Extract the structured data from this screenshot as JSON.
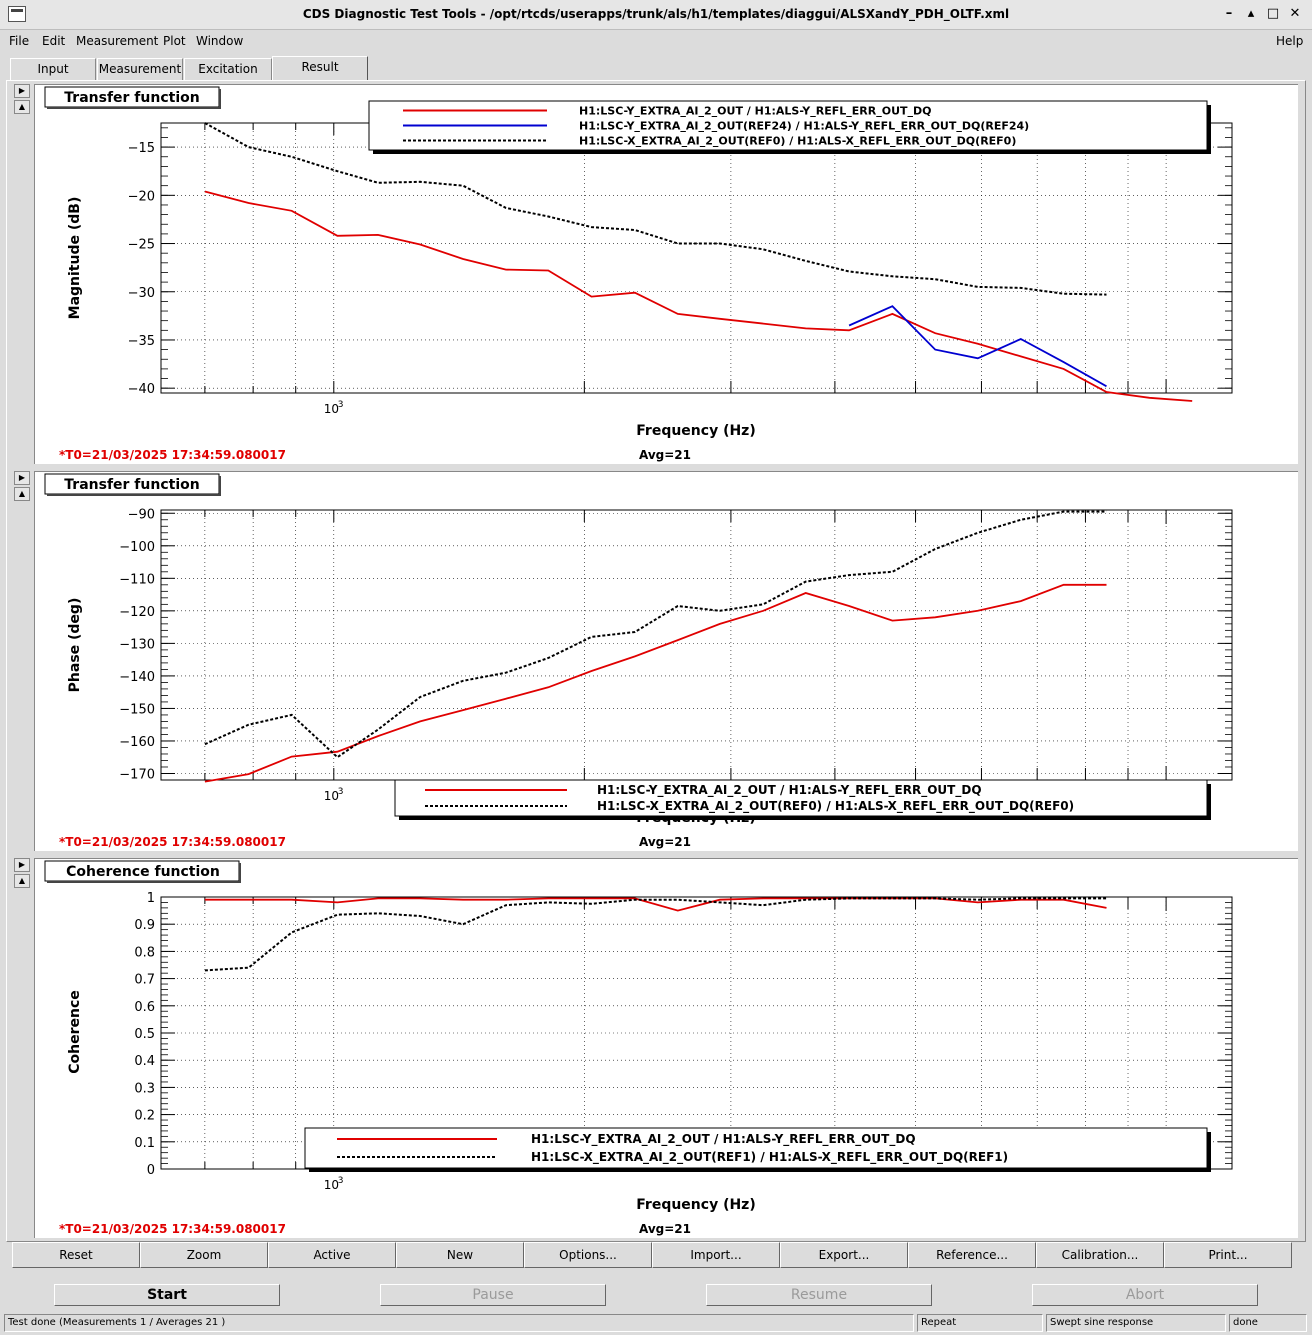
{
  "window": {
    "title": "CDS Diagnostic Test Tools - /opt/rtcds/userapps/trunk/als/h1/templates/diaggui/ALSXandY_PDH_OLTF.xml",
    "controls": [
      "–",
      "▴",
      "□",
      "✕"
    ]
  },
  "menu": {
    "file": "File",
    "edit": "Edit",
    "measurement": "Measurement",
    "plot": "Plot",
    "window": "Window",
    "help": "Help"
  },
  "tabs": [
    "Input",
    "Measurement",
    "Excitation",
    "Result"
  ],
  "active_tab": "Result",
  "colors": {
    "red": "#e00000",
    "blue": "#0000d0",
    "black": "#000000"
  },
  "panels": [
    {
      "title": "Transfer function",
      "xlabel": "Frequency (Hz)",
      "ylabel": "Magnitude (dB)",
      "t0": "*T0=21/03/2025 17:34:59.080017",
      "avg": "Avg=21",
      "legend": [
        "H1:LSC-Y_EXTRA_AI_2_OUT / H1:ALS-Y_REFL_ERR_OUT_DQ",
        "H1:LSC-Y_EXTRA_AI_2_OUT(REF24) / H1:ALS-Y_REFL_ERR_OUT_DQ(REF24)",
        "H1:LSC-X_EXTRA_AI_2_OUT(REF0) / H1:ALS-X_REFL_ERR_OUT_DQ(REF0)"
      ]
    },
    {
      "title": "Transfer function",
      "xlabel": "Frequency (Hz)",
      "ylabel": "Phase (deg)",
      "t0": "*T0=21/03/2025 17:34:59.080017",
      "avg": "Avg=21",
      "legend": [
        "H1:LSC-Y_EXTRA_AI_2_OUT / H1:ALS-Y_REFL_ERR_OUT_DQ",
        "H1:LSC-X_EXTRA_AI_2_OUT(REF0) / H1:ALS-X_REFL_ERR_OUT_DQ(REF0)"
      ]
    },
    {
      "title": "Coherence function",
      "xlabel": "Frequency (Hz)",
      "ylabel": "Coherence",
      "t0": "*T0=21/03/2025 17:34:59.080017",
      "avg": "Avg=21",
      "legend": [
        "H1:LSC-Y_EXTRA_AI_2_OUT / H1:ALS-Y_REFL_ERR_OUT_DQ",
        "H1:LSC-X_EXTRA_AI_2_OUT(REF1) / H1:ALS-X_REFL_ERR_OUT_DQ(REF1)"
      ]
    }
  ],
  "chart_data": [
    {
      "type": "line",
      "title": "Transfer function",
      "xlabel": "Frequency (Hz)",
      "ylabel": "Magnitude (dB)",
      "xscale": "log",
      "xlim": [
        620,
        12000
      ],
      "ylim": [
        -40.5,
        -12.5
      ],
      "xticklabels": [
        "10^3"
      ],
      "yticks": [
        -15,
        -20,
        -25,
        -30,
        -35,
        -40
      ],
      "grid": true,
      "legend_position": "top",
      "series": [
        {
          "name": "H1:LSC-Y_EXTRA_AI_2_OUT / H1:ALS-Y_REFL_ERR_OUT_DQ",
          "color": "#e00000",
          "style": "solid",
          "x": [
            700,
            790,
            890,
            1010,
            1130,
            1270,
            1430,
            1610,
            1810,
            2040,
            2300,
            2590,
            2910,
            3280,
            3690,
            4160,
            4690,
            5280,
            5940,
            6690,
            7530,
            8480,
            9550,
            10750
          ],
          "y": [
            -19.6,
            -20.8,
            -21.6,
            -24.2,
            -24.1,
            -25.1,
            -26.6,
            -27.7,
            -27.8,
            -30.5,
            -30.1,
            -32.3,
            -32.8,
            -33.3,
            -33.8,
            -34.0,
            -32.3,
            -34.3,
            -35.4,
            -36.7,
            -38.0,
            -40.4,
            -41.0,
            -41.5
          ]
        },
        {
          "name": "H1:LSC-Y_EXTRA_AI_2_OUT(REF24) / H1:ALS-Y_REFL_ERR_OUT_DQ(REF24)",
          "color": "#0000d0",
          "style": "solid",
          "x": [
            4160,
            4690,
            5280,
            5940,
            6690,
            7530,
            8480
          ],
          "y": [
            -33.5,
            -31.5,
            -36.0,
            -36.9,
            -34.9,
            -37.3,
            -39.8
          ]
        },
        {
          "name": "H1:LSC-X_EXTRA_AI_2_OUT(REF0) / H1:ALS-X_REFL_ERR_OUT_DQ(REF0)",
          "color": "#000000",
          "style": "dotted",
          "x": [
            700,
            790,
            890,
            1010,
            1130,
            1270,
            1430,
            1610,
            1810,
            2040,
            2300,
            2590,
            2910,
            3280,
            3690,
            4160,
            4690,
            5280,
            5940,
            6690,
            7530,
            8480
          ],
          "y": [
            -12.0,
            -15.0,
            -16.0,
            -17.5,
            -18.7,
            -18.6,
            -19.0,
            -21.3,
            -22.2,
            -23.3,
            -23.6,
            -25.0,
            -25.0,
            -25.6,
            -26.8,
            -27.9,
            -28.4,
            -28.7,
            -29.5,
            -29.6,
            -30.2,
            -30.3
          ]
        }
      ]
    },
    {
      "type": "line",
      "title": "Transfer function",
      "xlabel": "Frequency (Hz)",
      "ylabel": "Phase (deg)",
      "xscale": "log",
      "xlim": [
        620,
        12000
      ],
      "ylim": [
        -172,
        -89
      ],
      "xticklabels": [
        "10^3"
      ],
      "yticks": [
        -90,
        -100,
        -110,
        -120,
        -130,
        -140,
        -150,
        -160,
        -170
      ],
      "grid": true,
      "legend_position": "bottom",
      "series": [
        {
          "name": "H1:LSC-Y_EXTRA_AI_2_OUT / H1:ALS-Y_REFL_ERR_OUT_DQ",
          "color": "#e00000",
          "style": "solid",
          "x": [
            700,
            790,
            890,
            1010,
            1130,
            1270,
            1430,
            1610,
            1810,
            2040,
            2300,
            2590,
            2910,
            3280,
            3690,
            4160,
            4690,
            5280,
            5940,
            6690,
            7530,
            8480
          ],
          "y": [
            -172.5,
            -170.2,
            -164.8,
            -163.3,
            -158.5,
            -154.0,
            -150.5,
            -147.0,
            -143.5,
            -138.5,
            -134.0,
            -129.0,
            -124.0,
            -120.0,
            -114.5,
            -118.5,
            -123.0,
            -122.0,
            -120.0,
            -117.0,
            -112.0,
            -112.0
          ]
        },
        {
          "name": "H1:LSC-X_EXTRA_AI_2_OUT(REF0) / H1:ALS-X_REFL_ERR_OUT_DQ(REF0)",
          "color": "#000000",
          "style": "dotted",
          "x": [
            700,
            790,
            890,
            1010,
            1130,
            1270,
            1430,
            1610,
            1810,
            2040,
            2300,
            2590,
            2910,
            3280,
            3690,
            4160,
            4690,
            5280,
            5940,
            6690,
            7530,
            8480
          ],
          "y": [
            -161.0,
            -155.0,
            -152.0,
            -165.0,
            -156.5,
            -146.5,
            -141.5,
            -139.0,
            -134.5,
            -128.0,
            -126.5,
            -118.5,
            -120.0,
            -118.0,
            -111.0,
            -109.0,
            -108.0,
            -101.0,
            -96.0,
            -92.0,
            -89.5,
            -89.5
          ]
        }
      ]
    },
    {
      "type": "line",
      "title": "Coherence function",
      "xlabel": "Frequency (Hz)",
      "ylabel": "Coherence",
      "xscale": "log",
      "xlim": [
        620,
        12000
      ],
      "ylim": [
        0,
        1
      ],
      "xticklabels": [
        "10^3"
      ],
      "yticks": [
        0,
        0.1,
        0.2,
        0.3,
        0.4,
        0.5,
        0.6,
        0.7,
        0.8,
        0.9,
        1
      ],
      "grid": true,
      "legend_position": "bottom",
      "series": [
        {
          "name": "H1:LSC-Y_EXTRA_AI_2_OUT / H1:ALS-Y_REFL_ERR_OUT_DQ",
          "color": "#e00000",
          "style": "solid",
          "x": [
            700,
            790,
            890,
            1010,
            1130,
            1270,
            1430,
            1610,
            1810,
            2040,
            2300,
            2590,
            2910,
            3280,
            3690,
            4160,
            4690,
            5280,
            5940,
            6690,
            7530,
            8480
          ],
          "y": [
            0.99,
            0.99,
            0.99,
            0.98,
            0.995,
            0.995,
            0.99,
            0.99,
            0.995,
            0.995,
            0.995,
            0.95,
            0.99,
            0.995,
            0.995,
            0.995,
            0.995,
            0.995,
            0.98,
            0.99,
            0.99,
            0.96
          ]
        },
        {
          "name": "H1:LSC-X_EXTRA_AI_2_OUT(REF1) / H1:ALS-X_REFL_ERR_OUT_DQ(REF1)",
          "color": "#000000",
          "style": "dotted",
          "x": [
            700,
            790,
            890,
            1010,
            1130,
            1270,
            1430,
            1610,
            1810,
            2040,
            2300,
            2590,
            2910,
            3280,
            3690,
            4160,
            4690,
            5280,
            5940,
            6690,
            7530,
            8480
          ],
          "y": [
            0.73,
            0.74,
            0.87,
            0.935,
            0.94,
            0.93,
            0.9,
            0.97,
            0.98,
            0.975,
            0.99,
            0.99,
            0.98,
            0.97,
            0.99,
            0.995,
            0.995,
            0.995,
            0.99,
            0.995,
            0.995,
            0.995
          ]
        }
      ]
    }
  ],
  "toolbar": [
    "Reset",
    "Zoom",
    "Active",
    "New",
    "Options...",
    "Import...",
    "Export...",
    "Reference...",
    "Calibration...",
    "Print..."
  ],
  "controls": {
    "start": "Start",
    "pause": "Pause",
    "resume": "Resume",
    "abort": "Abort"
  },
  "status": {
    "message": "Test done (Measurements 1 / Averages 21 )",
    "repeat": "Repeat",
    "mode": "Swept sine response",
    "state": "done"
  }
}
